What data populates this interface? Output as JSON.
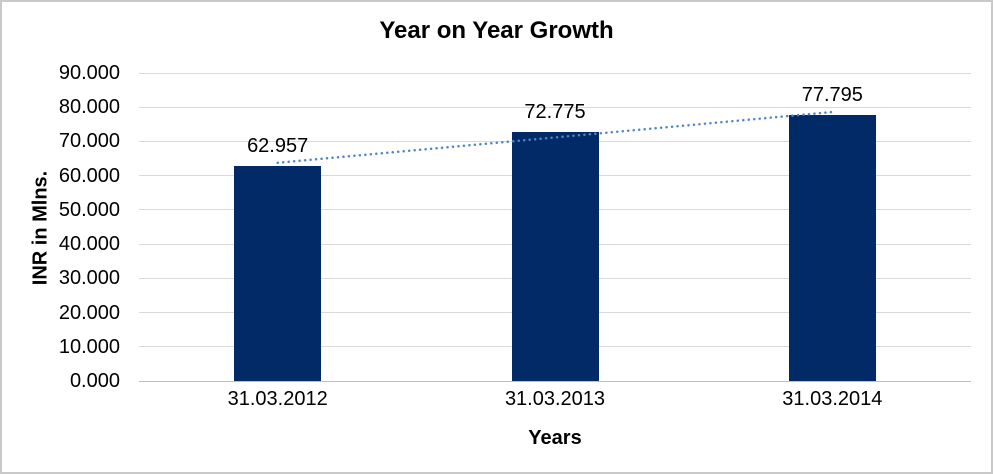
{
  "chart": {
    "background": "#FFFFFF",
    "border_color": "#C9C9C9"
  },
  "chart_data": {
    "type": "bar",
    "title": "Year on Year Growth",
    "categories": [
      "31.03.2012",
      "31.03.2013",
      "31.03.2014"
    ],
    "values": [
      62.957,
      72.775,
      77.795
    ],
    "data_labels": [
      "62.957",
      "72.775",
      "77.795"
    ],
    "xlabel": "Years",
    "ylabel": "INR in Mlns.",
    "ylim": [
      0,
      90
    ],
    "ytick_step": 10,
    "ytick_labels": [
      "0.000",
      "10.000",
      "20.000",
      "30.000",
      "40.000",
      "50.000",
      "60.000",
      "70.000",
      "80.000",
      "90.000"
    ],
    "grid": true,
    "legend": false,
    "trendline": {
      "type": "linear",
      "style": "dotted"
    },
    "colors": {
      "bar": "#022A66",
      "trendline": "#4E86C8",
      "gridline": "#D9D9D9",
      "axis_line": "#BFBFBF",
      "text": "#000000"
    }
  }
}
